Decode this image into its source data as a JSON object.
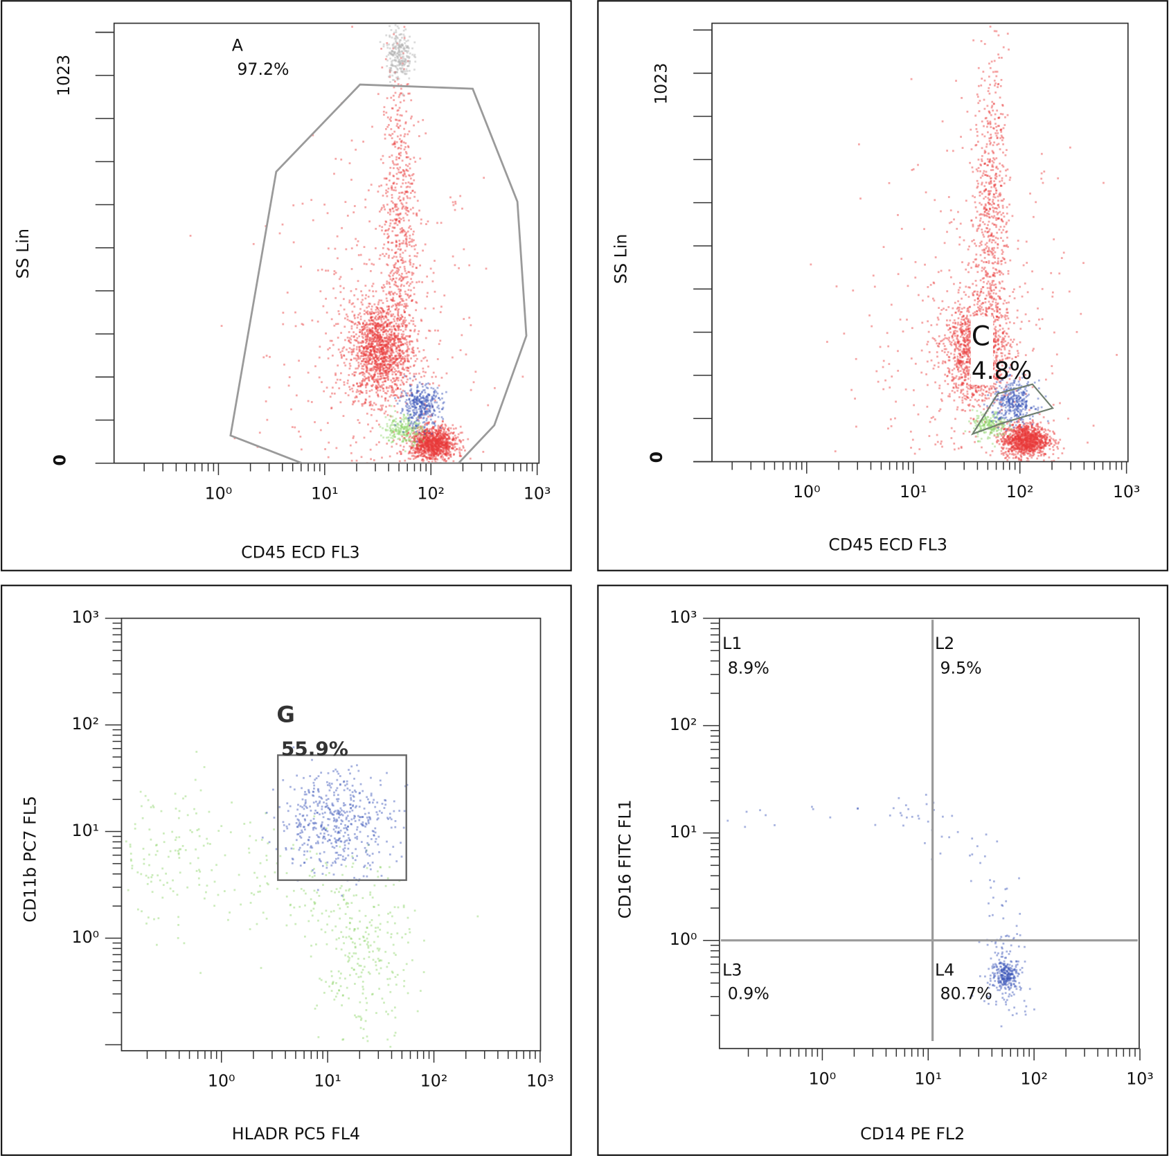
{
  "chart_data": [
    {
      "type": "scatter",
      "xlabel": "CD45 ECD FL3",
      "ylabel": "SS Lin",
      "x_scale": "log",
      "xlim": [
        0.1,
        1000
      ],
      "x_ticks": [
        "10⁰",
        "10¹",
        "10²",
        "10³"
      ],
      "y_scale": "linear",
      "ylim": [
        0,
        1140
      ],
      "y_tick_labels": {
        "zero": "0",
        "max": "1023"
      },
      "gate": {
        "name": "A",
        "percent": "97.2%",
        "shape": "polygon",
        "vertices": [
          [
            21.5,
            999
          ],
          [
            247,
            988
          ],
          [
            652,
            690
          ],
          [
            791,
            336
          ],
          [
            395,
            100
          ],
          [
            182,
            0
          ],
          [
            6.1,
            0
          ],
          [
            1.3,
            73
          ],
          [
            3.5,
            769
          ]
        ]
      },
      "populations": [
        {
          "color": "#e83a3a",
          "center": [
            30,
            300
          ],
          "spread_log10_x": 0.5,
          "spread_y": 260,
          "count": 450
        },
        {
          "color": "#e83a3a",
          "center": [
            33,
            297
          ],
          "spread_log10_x": 0.15,
          "spread_y": 65,
          "count": 1400
        },
        {
          "color": "#e83a3a",
          "center": [
            50,
            650
          ],
          "spread_log10_x": 0.08,
          "spread_y": 210,
          "count": 600
        },
        {
          "color": "#b0b0b0",
          "center": [
            50,
            1080
          ],
          "spread_log10_x": 0.06,
          "spread_y": 35,
          "count": 250
        },
        {
          "color": "#e83a3a",
          "center": [
            105,
            50
          ],
          "spread_log10_x": 0.11,
          "spread_y": 22,
          "count": 1100
        },
        {
          "color": "#8fd46a",
          "center": [
            55,
            90
          ],
          "spread_log10_x": 0.09,
          "spread_y": 20,
          "count": 220
        },
        {
          "color": "#3a54b8",
          "center": [
            80,
            150
          ],
          "spread_log10_x": 0.1,
          "spread_y": 28,
          "count": 350
        }
      ]
    },
    {
      "type": "scatter",
      "xlabel": "CD45 ECD FL3",
      "ylabel": "SS Lin",
      "x_scale": "log",
      "xlim": [
        0.1,
        1000
      ],
      "x_ticks": [
        "10⁰",
        "10¹",
        "10²",
        "10³"
      ],
      "y_scale": "linear",
      "ylim": [
        0,
        1140
      ],
      "y_tick_labels": {
        "zero": "0",
        "max": "1023"
      },
      "gate": {
        "name": "C",
        "percent": "4.8%",
        "shape": "polygon",
        "vertices": [
          [
            36,
            73
          ],
          [
            62,
            179
          ],
          [
            131,
            204
          ],
          [
            203,
            141
          ],
          [
            69,
            102
          ]
        ]
      },
      "populations": [
        {
          "color": "#e83a3a",
          "center": [
            35,
            300
          ],
          "spread_log10_x": 0.5,
          "spread_y": 250,
          "count": 400
        },
        {
          "color": "#e83a3a",
          "center": [
            39,
            292
          ],
          "spread_log10_x": 0.15,
          "spread_y": 65,
          "count": 1300
        },
        {
          "color": "#e83a3a",
          "center": [
            54,
            650
          ],
          "spread_log10_x": 0.08,
          "spread_y": 200,
          "count": 650
        },
        {
          "color": "#e83a3a",
          "center": [
            112,
            57
          ],
          "spread_log10_x": 0.11,
          "spread_y": 22,
          "count": 1100
        },
        {
          "color": "#8fd46a",
          "center": [
            52,
            96
          ],
          "spread_log10_x": 0.08,
          "spread_y": 18,
          "count": 200
        },
        {
          "color": "#3a54b8",
          "center": [
            88,
            155
          ],
          "spread_log10_x": 0.1,
          "spread_y": 28,
          "count": 350
        }
      ]
    },
    {
      "type": "scatter",
      "xlabel": "HLADR PC5 FL4",
      "ylabel": "CD11b PC7 FL5",
      "x_scale": "log",
      "xlim": [
        0.1,
        1000
      ],
      "x_ticks": [
        "10⁰",
        "10¹",
        "10²",
        "10³"
      ],
      "y_scale": "log",
      "ylim": [
        0.1,
        1000
      ],
      "y_ticks": [
        "10⁰",
        "10¹",
        "10²",
        "10³"
      ],
      "gate": {
        "name": "G",
        "percent": "55.9%",
        "shape": "rectangle",
        "x_range": [
          3.4,
          55
        ],
        "y_range": [
          3.5,
          52
        ]
      },
      "populations": [
        {
          "color": "#8fd46a",
          "center": [
            0.3,
            6
          ],
          "spread_log10_x": 0.35,
          "spread_log10_y": 0.35,
          "count": 130
        },
        {
          "color": "#8fd46a",
          "center": [
            5,
            3
          ],
          "spread_log10_x": 0.4,
          "spread_log10_y": 0.3,
          "count": 110
        },
        {
          "color": "#8fd46a",
          "center": [
            22,
            0.6
          ],
          "spread_log10_x": 0.22,
          "spread_log10_y": 0.4,
          "count": 260
        },
        {
          "color": "#3a54b8",
          "center": [
            12,
            12.7
          ],
          "spread_log10_x": 0.27,
          "spread_log10_y": 0.24,
          "count": 500
        }
      ]
    },
    {
      "type": "scatter",
      "xlabel": "CD14 PE FL2",
      "ylabel": "CD16 FITC FL1",
      "x_scale": "log",
      "xlim": [
        0.1,
        1000
      ],
      "x_ticks": [
        "10⁰",
        "10¹",
        "10²",
        "10³"
      ],
      "y_scale": "log",
      "ylim": [
        0.1,
        1000
      ],
      "y_ticks": [
        "10⁰",
        "10¹",
        "10²",
        "10³"
      ],
      "quadrant_split": {
        "x": 11,
        "y": 1.0
      },
      "quadrants": [
        {
          "name": "L1",
          "percent": "8.9%"
        },
        {
          "name": "L2",
          "percent": "9.5%"
        },
        {
          "name": "L3",
          "percent": "0.9%"
        },
        {
          "name": "L4",
          "percent": "80.7%"
        }
      ],
      "populations": [
        {
          "color": "#3a54b8",
          "center": [
            0.3,
            14
          ],
          "spread_log10_x": 0.2,
          "spread_log10_y": 0.05,
          "count": 6
        },
        {
          "color": "#3a54b8",
          "center": [
            1.2,
            14
          ],
          "spread_log10_x": 0.2,
          "spread_log10_y": 0.06,
          "count": 6
        },
        {
          "color": "#3a54b8",
          "center": [
            5,
            15
          ],
          "spread_log10_x": 0.12,
          "spread_log10_y": 0.08,
          "count": 12
        },
        {
          "color": "#3a54b8",
          "center": [
            12,
            11
          ],
          "spread_log10_x": 0.1,
          "spread_log10_y": 0.12,
          "count": 14
        },
        {
          "color": "#3a54b8",
          "center": [
            28,
            6
          ],
          "spread_log10_x": 0.1,
          "spread_log10_y": 0.12,
          "count": 10
        },
        {
          "color": "#3a54b8",
          "center": [
            50,
            2.5
          ],
          "spread_log10_x": 0.1,
          "spread_log10_y": 0.15,
          "count": 14
        },
        {
          "color": "#3a54b8",
          "center": [
            50,
            0.9
          ],
          "spread_log10_x": 0.1,
          "spread_log10_y": 0.12,
          "count": 35
        },
        {
          "color": "#3a54b8",
          "center": [
            55,
            0.48
          ],
          "spread_log10_x": 0.07,
          "spread_log10_y": 0.07,
          "count": 260
        },
        {
          "color": "#3a54b8",
          "center": [
            55,
            0.3
          ],
          "spread_log10_x": 0.12,
          "spread_log10_y": 0.12,
          "count": 40
        }
      ]
    }
  ]
}
